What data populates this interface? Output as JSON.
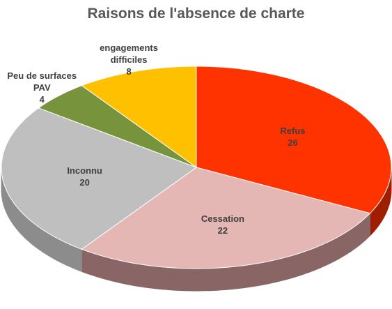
{
  "chart_data": {
    "type": "pie",
    "title": "Raisons de l'absence de charte",
    "categories": [
      "Refus",
      "Cessation",
      "Inconnu",
      "Peu de surfaces PAV",
      "engagements difficiles"
    ],
    "values": [
      26,
      22,
      20,
      4,
      8
    ],
    "colors": [
      "#ff3300",
      "#e4b6b4",
      "#bfbfbf",
      "#77933c",
      "#ffc000"
    ],
    "side_colors": [
      "#a01e00",
      "#8a6565",
      "#8c8c8c",
      "#4d6126",
      "#b38600"
    ]
  }
}
